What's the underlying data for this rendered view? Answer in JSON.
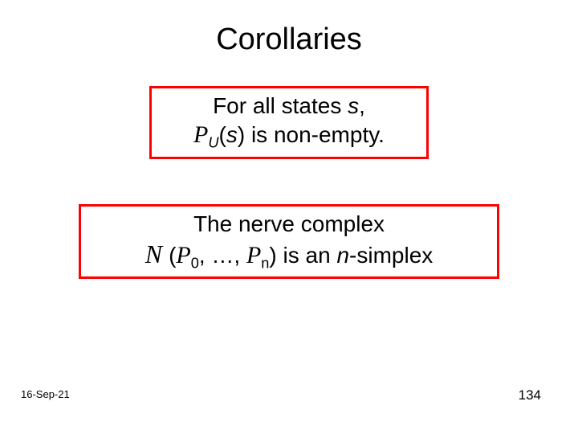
{
  "slide": {
    "title": "Corollaries",
    "box1": {
      "line1": "For all states ",
      "line1_var": "s",
      "line1_end": ",",
      "line2_P": "P",
      "line2_sub": "U",
      "line2_open": "(",
      "line2_var": "s",
      "line2_close": ") is non-empty."
    },
    "box2": {
      "line1": "The nerve complex",
      "line2_N": "N ",
      "line2_open": "(",
      "line2_P1": "P",
      "line2_sub1": "0",
      "line2_mid": ", …, ",
      "line2_P2": "P",
      "line2_sub2": "n",
      "line2_close": ") is an ",
      "line2_nvar": "n",
      "line2_end": "-simplex"
    },
    "footer": {
      "date": "16-Sep-21",
      "page": "134"
    },
    "colors": {
      "border": "#ff0000",
      "text": "#000000",
      "background": "#ffffff"
    }
  }
}
